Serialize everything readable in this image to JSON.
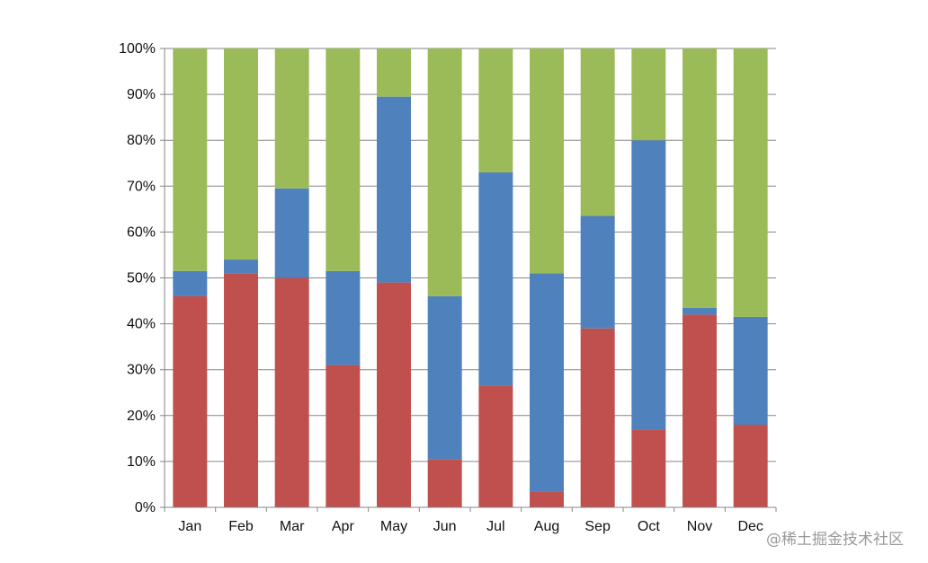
{
  "chart_data": {
    "type": "bar",
    "stacked": "percent",
    "categories": [
      "Jan",
      "Feb",
      "Mar",
      "Apr",
      "May",
      "Jun",
      "Jul",
      "Aug",
      "Sep",
      "Oct",
      "Nov",
      "Dec"
    ],
    "series": [
      {
        "color": "#c0504d",
        "values": [
          46,
          51,
          50,
          31,
          49,
          10.5,
          26.5,
          3.5,
          39,
          17,
          42,
          18
        ]
      },
      {
        "color": "#4f81bd",
        "values": [
          5.5,
          3,
          19.5,
          20.5,
          40.5,
          35.5,
          46.5,
          47.5,
          24.5,
          63,
          1.5,
          23.5
        ]
      },
      {
        "color": "#9bbb59",
        "values": [
          48.5,
          46,
          30.5,
          48.5,
          10.5,
          54,
          27,
          49,
          36.5,
          20,
          56.5,
          58.5
        ]
      }
    ],
    "ylim": [
      0,
      100
    ],
    "yticks": [
      "0%",
      "10%",
      "20%",
      "30%",
      "40%",
      "50%",
      "60%",
      "70%",
      "80%",
      "90%",
      "100%"
    ],
    "grid": true,
    "legend": "none"
  },
  "watermark": "@稀土掘金技术社区"
}
